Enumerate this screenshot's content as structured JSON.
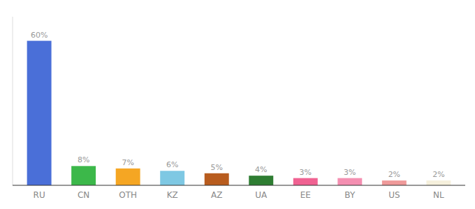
{
  "chart_data": {
    "type": "bar",
    "categories": [
      "RU",
      "CN",
      "OTH",
      "KZ",
      "AZ",
      "UA",
      "EE",
      "BY",
      "US",
      "NL"
    ],
    "values": [
      60,
      8,
      7,
      6,
      5,
      4,
      3,
      3,
      2,
      2
    ],
    "value_labels": [
      "60%",
      "8%",
      "7%",
      "6%",
      "5%",
      "4%",
      "3%",
      "3%",
      "2%",
      "2%"
    ],
    "colors": [
      "#4a6fd8",
      "#3cb84a",
      "#f5a623",
      "#7ec8e3",
      "#b85c1e",
      "#2e7d32",
      "#f06292",
      "#f48fb1",
      "#ef9a9a",
      "#f5f0dc"
    ],
    "ylim": [
      0,
      70
    ],
    "grid": false,
    "data_labels": true,
    "tick_labels": "x"
  }
}
